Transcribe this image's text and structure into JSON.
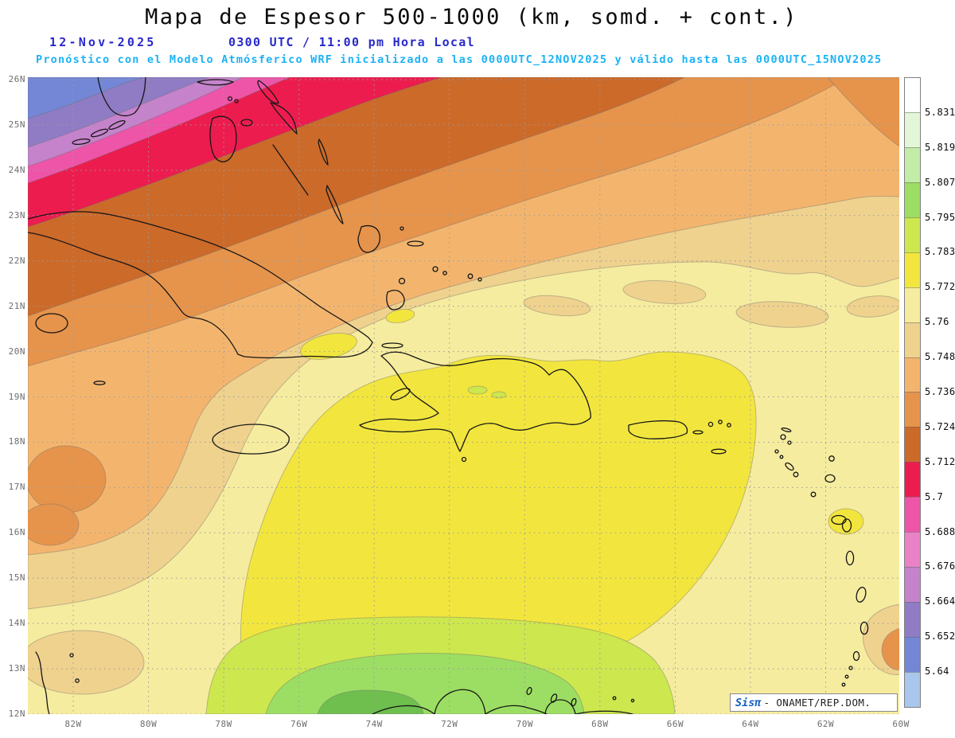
{
  "header": {
    "title": "Mapa de Espesor 500-1000 (km, somd. + cont.)",
    "date": "12-Nov-2025",
    "time": "0300 UTC / 11:00 pm Hora Local",
    "forecast_note": "Pronóstico con el Modelo Atmósferico WRF inicializado a las 0000UTC_12NOV2025 y válido hasta las  0000UTC_15NOV2025"
  },
  "axes": {
    "lat_labels": [
      "26N",
      "25N",
      "24N",
      "23N",
      "22N",
      "21N",
      "20N",
      "19N",
      "18N",
      "17N",
      "16N",
      "15N",
      "14N",
      "13N",
      "12N"
    ],
    "lon_labels": [
      "82W",
      "80W",
      "78W",
      "76W",
      "74W",
      "72W",
      "70W",
      "68W",
      "66W",
      "64W",
      "62W",
      "60W"
    ]
  },
  "colorbar": {
    "segments": [
      {
        "color": "#FFFFFF",
        "label": "5.831"
      },
      {
        "color": "#E3F7D8",
        "label": "5.819"
      },
      {
        "color": "#C3ECA8",
        "label": "5.807"
      },
      {
        "color": "#9CDE63",
        "label": "5.795"
      },
      {
        "color": "#CDE74E",
        "label": "5.783"
      },
      {
        "color": "#F2E63E",
        "label": "5.772"
      },
      {
        "color": "#F6EC9F",
        "label": "5.76"
      },
      {
        "color": "#EFD28E",
        "label": "5.748"
      },
      {
        "color": "#F3B56E",
        "label": "5.736"
      },
      {
        "color": "#E6944C",
        "label": "5.724"
      },
      {
        "color": "#CC6A2A",
        "label": "5.712"
      },
      {
        "color": "#ED1C4F",
        "label": "5.7"
      },
      {
        "color": "#EE55A9",
        "label": "5.688"
      },
      {
        "color": "#EA82C8",
        "label": "5.676"
      },
      {
        "color": "#C583CB",
        "label": "5.664"
      },
      {
        "color": "#8F7CC5",
        "label": "5.652"
      },
      {
        "color": "#7486D6",
        "label": "5.64"
      },
      {
        "color": "#A9C7EC",
        "label": null
      }
    ]
  },
  "credit": {
    "logo": "Sisπ",
    "text": "- ONAMET/REP.DOM."
  },
  "chart_data": {
    "type": "heatmap",
    "title": "Mapa de Espesor 500-1000 (km, somd. + cont.)",
    "variable": "Espesor (thickness) 500-1000 hPa",
    "units": "km",
    "model": "WRF",
    "init": "0000UTC_12NOV2025",
    "valid_until": "0000UTC_15NOV2025",
    "valid_at": "12-Nov-2025 0300 UTC / 11:00 pm Hora Local",
    "lon_range_deg_w": [
      83.2,
      60
    ],
    "lat_range_deg_n": [
      12,
      26
    ],
    "grid": "dashed gray, 2° lon × 1° lat",
    "contour_levels_km": [
      5.64,
      5.652,
      5.664,
      5.676,
      5.688,
      5.7,
      5.712,
      5.724,
      5.736,
      5.748,
      5.76,
      5.772,
      5.783,
      5.795,
      5.807,
      5.819,
      5.831
    ],
    "band_colors": {
      "blue": "#7486D6",
      "purple": "#8F7CC5",
      "orchid": "#C583CB",
      "magenta": "#EE55A9",
      "crimson": "#ED1C4F",
      "brown": "#CC6A2A",
      "orange": "#E6944C",
      "lightOrange": "#F3B56E",
      "tan": "#EFD28E",
      "paleYellow": "#F6EC9F",
      "yellow": "#F2E63E",
      "yellowGreen": "#CDE74E",
      "green": "#9CDE63",
      "darkGreen": "#6FBF4F"
    },
    "pattern": "Thickness increases from NW to S: blue/purple/pink/crimson bands (≈5.64–5.71 km) angle across Florida and the NW Bahamas; brown-orange-tan bands (5.712–5.76) over Cuba and the NW Caribbean; broad pale-yellow field (5.76–5.772) over most of the basin; bright yellow (5.772–5.783) over southern Hispaniola, Puerto Rico and the central-south Caribbean; yellow-green (5.783–5.795) and green (5.795–5.807) along the Venezuela/Colombia coast near 12–13N"
  }
}
